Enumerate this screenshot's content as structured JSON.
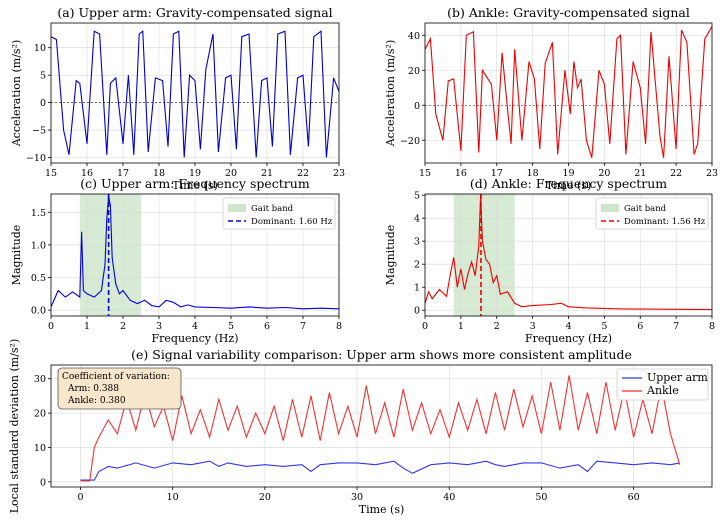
{
  "figure": {
    "background": "#ffffff"
  },
  "chart_data": [
    {
      "id": "a",
      "type": "line",
      "title": "(a) Upper arm: Gravity-compensated signal",
      "xlabel": "Time (s)",
      "ylabel": "Acceleration (m/s²)",
      "xlim": [
        15,
        23
      ],
      "ylim": [
        -11,
        14.5
      ],
      "xticks": [
        15,
        16,
        17,
        18,
        19,
        20,
        21,
        22,
        23
      ],
      "yticks": [
        -10,
        -5,
        0,
        5,
        10
      ],
      "grid": true,
      "zero_line": true,
      "color": "#0000cc",
      "series": [
        {
          "style": "solid",
          "x": [
            15.0,
            15.15,
            15.35,
            15.5,
            15.7,
            15.8,
            16.0,
            16.2,
            16.35,
            16.55,
            16.65,
            16.8,
            17.0,
            17.15,
            17.3,
            17.45,
            17.55,
            17.7,
            17.9,
            18.1,
            18.25,
            18.4,
            18.55,
            18.7,
            18.85,
            19.0,
            19.15,
            19.3,
            19.5,
            19.65,
            19.85,
            20.0,
            20.15,
            20.3,
            20.5,
            20.7,
            20.85,
            21.0,
            21.15,
            21.3,
            21.5,
            21.65,
            21.85,
            22.0,
            22.15,
            22.3,
            22.5,
            22.65,
            22.85,
            23.0
          ],
          "y": [
            12.0,
            11.5,
            -5.0,
            -9.5,
            4.0,
            3.5,
            -7.5,
            13.0,
            12.5,
            -9.5,
            3.5,
            4.5,
            -7.5,
            5.0,
            -9.5,
            12.5,
            13.0,
            -9.0,
            4.5,
            4.0,
            -8.0,
            12.5,
            13.0,
            -10.0,
            5.0,
            4.0,
            -8.5,
            6.0,
            12.5,
            -9.0,
            4.5,
            5.0,
            -8.5,
            12.0,
            12.5,
            -10.0,
            4.0,
            4.5,
            -8.0,
            12.5,
            13.0,
            -9.5,
            4.5,
            5.0,
            -8.0,
            12.0,
            13.0,
            -10.0,
            4.5,
            2.0
          ]
        }
      ]
    },
    {
      "id": "b",
      "type": "line",
      "title": "(b) Ankle: Gravity-compensated signal",
      "xlabel": "Time (s)",
      "ylabel": "Acceleration (m/s²)",
      "xlim": [
        15,
        23
      ],
      "ylim": [
        -33,
        47
      ],
      "xticks": [
        15,
        16,
        17,
        18,
        19,
        20,
        21,
        22,
        23
      ],
      "yticks": [
        -20,
        0,
        20,
        40
      ],
      "grid": true,
      "zero_line": true,
      "color": "#ee0000",
      "series": [
        {
          "style": "solid",
          "x": [
            15.0,
            15.15,
            15.3,
            15.5,
            15.65,
            15.8,
            16.0,
            16.15,
            16.35,
            16.5,
            16.6,
            16.85,
            17.0,
            17.15,
            17.3,
            17.4,
            17.5,
            17.7,
            17.9,
            18.05,
            18.2,
            18.35,
            18.55,
            18.7,
            18.9,
            19.05,
            19.15,
            19.25,
            19.35,
            19.5,
            19.65,
            19.85,
            20.0,
            20.15,
            20.35,
            20.45,
            20.6,
            20.8,
            21.0,
            21.15,
            21.3,
            21.55,
            21.65,
            21.8,
            22.0,
            22.15,
            22.3,
            22.5,
            22.6,
            22.8,
            23.0
          ],
          "y": [
            32.0,
            38.0,
            -5.0,
            -20.0,
            14.0,
            15.0,
            -26.0,
            40.0,
            42.0,
            -27.0,
            20.0,
            12.0,
            -20.0,
            30.0,
            -2.0,
            -22.0,
            32.0,
            -20.0,
            25.0,
            15.0,
            -25.0,
            24.0,
            36.0,
            -28.0,
            20.0,
            -5.0,
            25.0,
            10.0,
            15.0,
            -20.0,
            -30.0,
            20.0,
            12.0,
            -22.0,
            38.0,
            40.0,
            -28.0,
            25.0,
            10.0,
            -22.0,
            42.0,
            -18.0,
            -30.0,
            28.0,
            -25.0,
            43.0,
            36.0,
            -28.0,
            -22.0,
            38.0,
            45.0
          ]
        }
      ]
    },
    {
      "id": "c",
      "type": "line",
      "title": "(c) Upper arm: Frequency spectrum",
      "xlabel": "Frequency (Hz)",
      "ylabel": "Magnitude",
      "xlim": [
        0,
        8
      ],
      "ylim": [
        -0.09,
        1.78
      ],
      "xticks": [
        0,
        1,
        2,
        3,
        4,
        5,
        6,
        7,
        8
      ],
      "yticks": [
        0.0,
        0.5,
        1.0,
        1.5
      ],
      "tick_labels_y": [
        "0.0",
        "0.5",
        "1.0",
        "1.5"
      ],
      "grid": true,
      "color": "#0000dd",
      "band": {
        "x0": 0.8,
        "x1": 2.5,
        "color": "#cfe6cc",
        "name": "Gait band"
      },
      "dominant": {
        "x": 1.6,
        "name": "Dominant: 1.60 Hz"
      },
      "legend": "top-right",
      "series": [
        {
          "style": "solid",
          "x": [
            0.0,
            0.2,
            0.4,
            0.6,
            0.8,
            0.85,
            0.9,
            1.0,
            1.2,
            1.4,
            1.5,
            1.55,
            1.6,
            1.65,
            1.7,
            1.8,
            1.9,
            2.0,
            2.2,
            2.4,
            2.6,
            2.8,
            3.0,
            3.2,
            3.4,
            3.6,
            3.8,
            4.0,
            4.5,
            5.0,
            5.5,
            6.0,
            6.5,
            7.0,
            7.5,
            8.0
          ],
          "y": [
            0.05,
            0.3,
            0.2,
            0.28,
            0.2,
            1.2,
            0.3,
            0.25,
            0.2,
            0.3,
            0.7,
            1.4,
            1.75,
            1.6,
            0.8,
            0.4,
            0.25,
            0.3,
            0.15,
            0.1,
            0.15,
            0.07,
            0.05,
            0.15,
            0.12,
            0.05,
            0.08,
            0.05,
            0.04,
            0.03,
            0.05,
            0.03,
            0.04,
            0.02,
            0.03,
            0.02
          ]
        }
      ]
    },
    {
      "id": "d",
      "type": "line",
      "title": "(d) Ankle: Frequency spectrum",
      "xlabel": "Frequency (Hz)",
      "ylabel": "Magnitude",
      "xlim": [
        0,
        8
      ],
      "ylim": [
        -0.25,
        5.05
      ],
      "xticks": [
        0,
        1,
        2,
        3,
        4,
        5,
        6,
        7,
        8
      ],
      "yticks": [
        0,
        1,
        2,
        3,
        4,
        5
      ],
      "grid": true,
      "color": "#ee0000",
      "band": {
        "x0": 0.8,
        "x1": 2.5,
        "color": "#cfe6cc",
        "name": "Gait band"
      },
      "dominant": {
        "x": 1.56,
        "name": "Dominant: 1.56 Hz"
      },
      "legend": "top-right",
      "series": [
        {
          "style": "solid",
          "x": [
            0.0,
            0.1,
            0.2,
            0.4,
            0.6,
            0.7,
            0.8,
            0.9,
            1.0,
            1.1,
            1.2,
            1.3,
            1.4,
            1.5,
            1.55,
            1.6,
            1.7,
            1.8,
            1.9,
            2.0,
            2.1,
            2.3,
            2.5,
            2.7,
            3.0,
            3.5,
            3.8,
            4.0,
            4.5,
            5.0,
            5.5,
            6.0,
            7.0,
            8.0
          ],
          "y": [
            0.3,
            0.8,
            0.5,
            0.9,
            0.6,
            1.5,
            2.3,
            1.0,
            1.8,
            0.9,
            1.6,
            2.1,
            1.5,
            2.8,
            5.0,
            3.0,
            2.2,
            2.0,
            1.2,
            1.5,
            0.7,
            0.8,
            0.3,
            0.15,
            0.2,
            0.25,
            0.3,
            0.15,
            0.1,
            0.08,
            0.06,
            0.05,
            0.04,
            0.03
          ]
        }
      ]
    },
    {
      "id": "e",
      "type": "line",
      "title": "(e) Signal variability comparison: Upper arm shows more consistent amplitude",
      "xlabel": "Time (s)",
      "ylabel": "Local standard deviation (m/s²)",
      "xlim": [
        -3.2,
        68.5
      ],
      "ylim": [
        -1.5,
        34
      ],
      "xticks": [
        0,
        10,
        20,
        30,
        40,
        50,
        60
      ],
      "yticks": [
        0,
        10,
        20,
        30
      ],
      "grid": true,
      "legend": "top-right",
      "annotation": {
        "heading": "Coefficient of variation:",
        "arm": "Arm: 0.388",
        "ankle": "Ankle: 0.380"
      },
      "series": [
        {
          "name": "Upper arm",
          "color": "#3333ee",
          "x": [
            0.0,
            1.0,
            1.5,
            2.0,
            3.0,
            4.0,
            6.0,
            8.0,
            10.0,
            12.0,
            14.0,
            15.0,
            16.0,
            18.0,
            20.0,
            22.0,
            24.0,
            25.0,
            26.0,
            28.0,
            30.0,
            32.0,
            34.0,
            35.0,
            36.0,
            38.0,
            40.0,
            42.0,
            44.0,
            45.0,
            46.0,
            48.0,
            50.0,
            52.0,
            54.0,
            55.0,
            56.0,
            58.0,
            60.0,
            62.0,
            64.0,
            65.0
          ],
          "y": [
            0.5,
            0.5,
            0.5,
            3.0,
            4.5,
            4.0,
            5.5,
            4.0,
            5.5,
            5.0,
            6.0,
            4.5,
            5.5,
            4.5,
            5.0,
            4.5,
            5.0,
            3.0,
            5.0,
            5.5,
            5.5,
            5.0,
            6.0,
            4.0,
            2.5,
            5.0,
            5.5,
            5.0,
            6.0,
            5.0,
            4.5,
            5.5,
            5.5,
            4.0,
            5.0,
            3.0,
            6.0,
            5.5,
            5.0,
            5.5,
            5.0,
            5.5
          ]
        },
        {
          "name": "Ankle",
          "color": "#ee3333",
          "x": [
            0.0,
            1.0,
            1.5,
            2.0,
            3.0,
            4.0,
            5.0,
            6.0,
            7.0,
            8.0,
            9.0,
            10.0,
            11.0,
            12.0,
            13.0,
            14.0,
            15.0,
            16.0,
            17.0,
            18.0,
            19.0,
            20.0,
            21.0,
            22.0,
            23.0,
            24.0,
            25.0,
            26.0,
            27.0,
            28.0,
            29.0,
            30.0,
            31.0,
            32.0,
            33.0,
            34.0,
            35.0,
            36.0,
            37.0,
            38.0,
            39.0,
            40.0,
            41.0,
            42.0,
            43.0,
            44.0,
            45.0,
            46.0,
            47.0,
            48.0,
            49.0,
            50.0,
            51.0,
            52.0,
            53.0,
            54.0,
            55.0,
            56.0,
            57.0,
            58.0,
            59.0,
            60.0,
            61.0,
            62.0,
            63.0,
            64.0,
            65.0
          ],
          "y": [
            0.3,
            0.3,
            10.0,
            13.0,
            18.0,
            14.0,
            24.0,
            15.0,
            26.0,
            16.0,
            22.0,
            12.0,
            25.0,
            14.0,
            21.0,
            13.0,
            24.0,
            15.0,
            22.0,
            13.0,
            20.0,
            14.0,
            22.0,
            12.0,
            24.0,
            13.0,
            25.0,
            12.0,
            26.0,
            14.0,
            22.0,
            13.0,
            28.0,
            14.0,
            23.0,
            13.0,
            27.0,
            15.0,
            23.0,
            14.0,
            21.0,
            13.0,
            23.0,
            15.0,
            24.0,
            14.0,
            26.0,
            15.0,
            27.0,
            16.0,
            25.0,
            14.0,
            29.0,
            15.0,
            31.0,
            15.0,
            26.0,
            14.0,
            29.0,
            15.0,
            27.0,
            13.0,
            24.0,
            14.0,
            28.0,
            14.0,
            5.0
          ]
        }
      ]
    }
  ]
}
